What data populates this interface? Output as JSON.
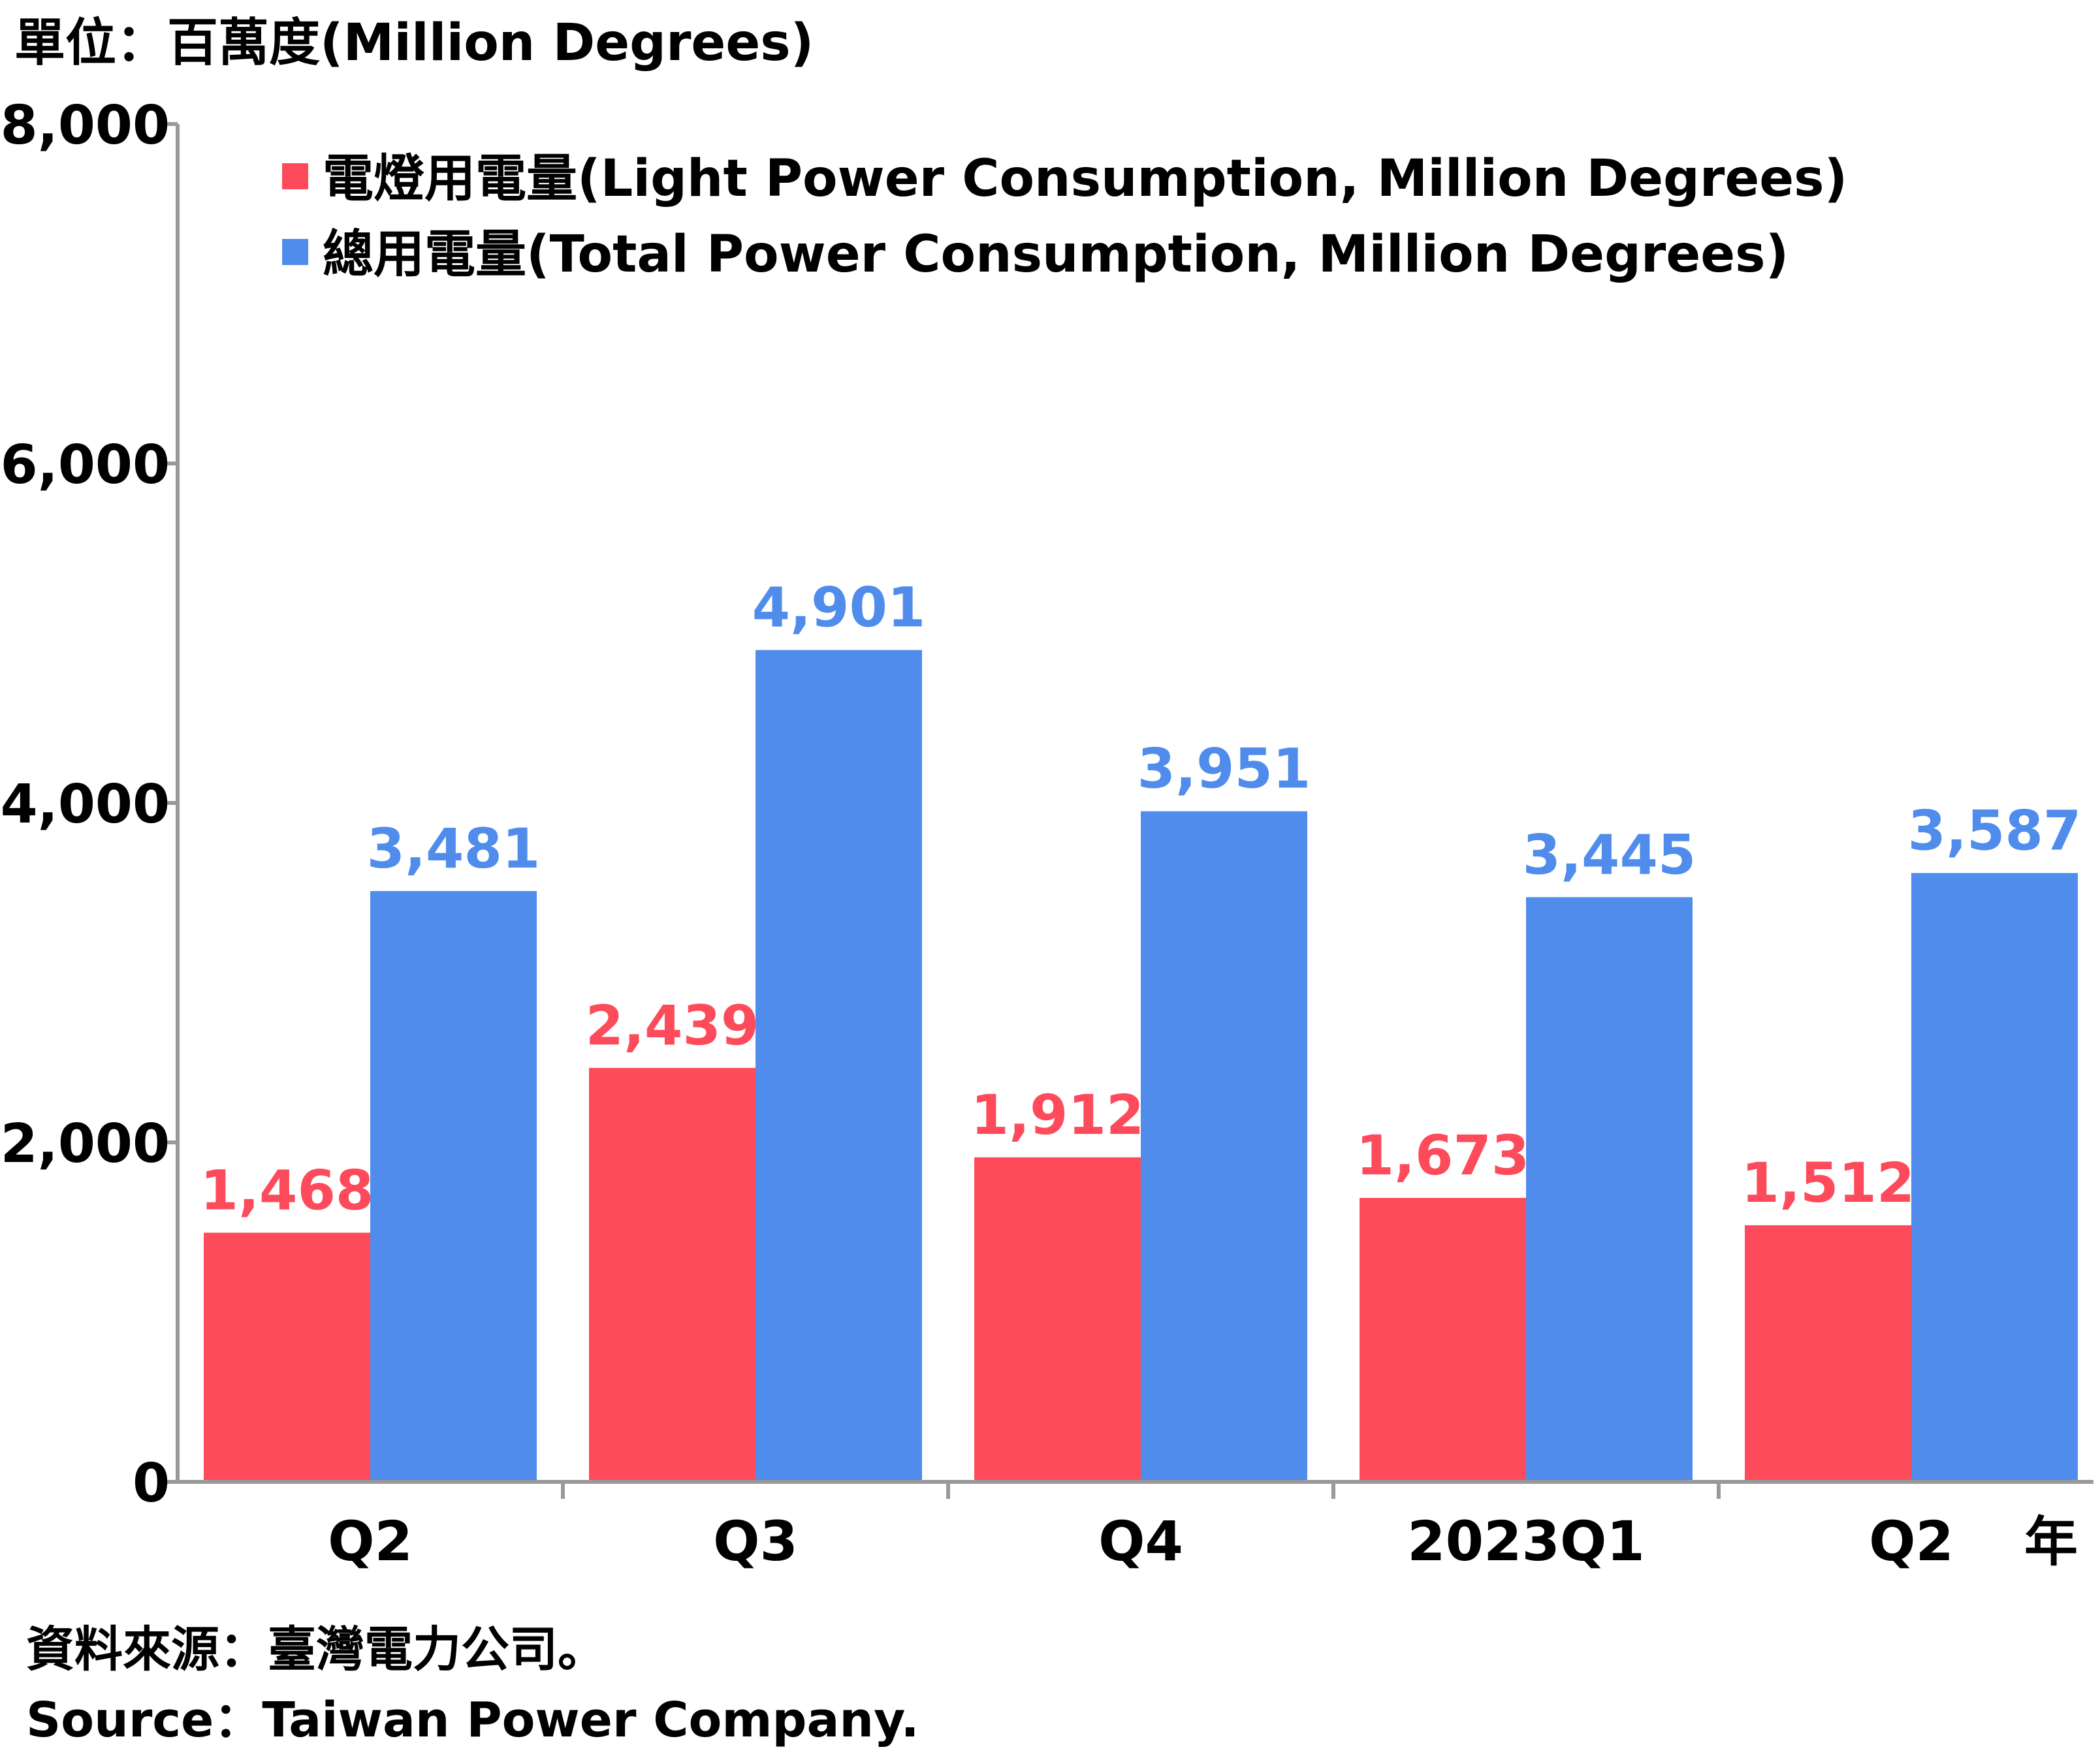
{
  "unit_label": "單位：百萬度(Million Degrees)",
  "source": {
    "zh": "資料來源：臺灣電力公司。",
    "en": "Source：Taiwan Power Company."
  },
  "colors": {
    "light": "#fd4b5b",
    "total": "#508ceb",
    "axis": "#999999",
    "text": "#000000"
  },
  "chart_data": {
    "type": "bar",
    "title": "",
    "xlabel": "年",
    "ylabel": "單位：百萬度(Million Degrees)",
    "ylim": [
      0,
      8000
    ],
    "y_ticks": [
      0,
      2000,
      4000,
      6000,
      8000
    ],
    "y_tick_labels": [
      "0",
      "2,000",
      "4,000",
      "6,000",
      "8,000"
    ],
    "categories": [
      "Q2",
      "Q3",
      "Q4",
      "2023Q1",
      "Q2"
    ],
    "legend_position": "top-left",
    "grid": false,
    "series": [
      {
        "name": "電燈用電量(Light Power Consumption, Million Degrees)",
        "color": "#fd4b5b",
        "values": [
          1468,
          2439,
          1912,
          1673,
          1512
        ],
        "labels": [
          "1,468",
          "2,439",
          "1,912",
          "1,673",
          "1,512"
        ]
      },
      {
        "name": "總用電量(Total Power Consumption, Million Degrees)",
        "color": "#508ceb",
        "values": [
          3481,
          4901,
          3951,
          3445,
          3587
        ],
        "labels": [
          "3,481",
          "4,901",
          "3,951",
          "3,445",
          "3,587"
        ]
      }
    ]
  }
}
